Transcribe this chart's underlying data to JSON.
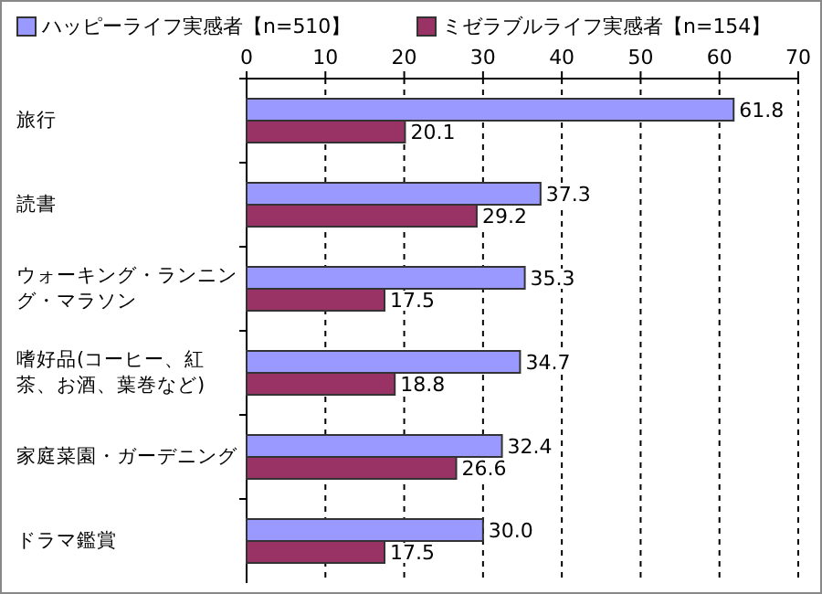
{
  "chart_data": {
    "type": "bar",
    "orientation": "horizontal",
    "categories": [
      "旅行",
      "読書",
      "ウォーキング・ランニング・マラソン",
      "嗜好品(コーヒー、紅茶、お酒、葉巻など)",
      "家庭菜園・ガーデニング",
      "ドラマ鑑賞"
    ],
    "series": [
      {
        "name": "ハッピーライフ実感者【n=510】",
        "color": "#9999ff",
        "values": [
          61.8,
          37.3,
          35.3,
          34.7,
          32.4,
          30.0
        ],
        "value_labels": [
          "61.8",
          "37.3",
          "35.3",
          "34.7",
          "32.4",
          "30.0"
        ]
      },
      {
        "name": "ミゼラブルライフ実感者【n=154】",
        "color": "#993366",
        "values": [
          20.1,
          29.2,
          17.5,
          18.8,
          26.6,
          17.5
        ],
        "value_labels": [
          "20.1",
          "29.2",
          "17.5",
          "18.8",
          "26.6",
          "17.5"
        ]
      }
    ],
    "xlim": [
      0,
      70
    ],
    "xticks": [
      0,
      10,
      20,
      30,
      40,
      50,
      60,
      70
    ],
    "grid": "x",
    "legend": "top"
  }
}
